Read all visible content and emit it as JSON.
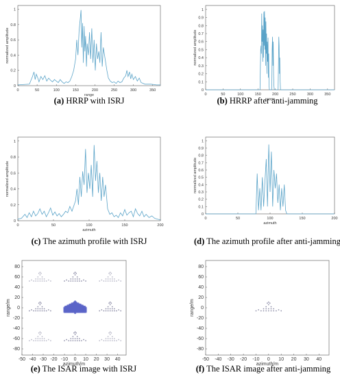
{
  "colors": {
    "line": "#5aa3c8",
    "axis": "#555555",
    "dense": "#5b64c8",
    "dot": "#8e8ea8"
  },
  "chart_data": [
    {
      "panel": "a",
      "type": "line",
      "caption_label": "(a)",
      "caption_text": "HRRP with ISRJ",
      "xlabel": "range",
      "ylabel": "normalized amplitude",
      "xlim": [
        0,
        370
      ],
      "ylim": [
        0,
        1.05
      ],
      "xticks": [
        0,
        50,
        100,
        150,
        200,
        250,
        300,
        350
      ],
      "yticks": [
        0,
        0.2,
        0.4,
        0.6,
        0.8,
        1
      ],
      "series": [
        {
          "x": [
            0,
            30,
            38,
            42,
            45,
            48,
            52,
            55,
            60,
            65,
            70,
            75,
            80,
            85,
            90,
            95,
            100,
            105,
            110,
            115,
            120,
            125,
            130,
            135,
            140,
            145,
            150,
            153,
            156,
            159,
            162,
            164,
            166,
            168,
            170,
            172,
            174,
            176,
            178,
            180,
            183,
            186,
            189,
            192,
            195,
            198,
            201,
            204,
            207,
            210,
            213,
            216,
            219,
            222,
            225,
            228,
            231,
            235,
            240,
            245,
            250,
            255,
            260,
            265,
            270,
            275,
            280,
            283,
            286,
            290,
            293,
            296,
            300,
            305,
            310,
            315,
            320,
            330,
            345,
            360,
            370
          ],
          "y": [
            0.01,
            0.02,
            0.12,
            0.18,
            0.08,
            0.15,
            0.1,
            0.05,
            0.12,
            0.08,
            0.13,
            0.06,
            0.1,
            0.07,
            0.05,
            0.08,
            0.06,
            0.04,
            0.08,
            0.05,
            0.03,
            0.05,
            0.04,
            0.06,
            0.12,
            0.2,
            0.35,
            0.6,
            0.4,
            0.72,
            0.88,
            0.99,
            0.5,
            0.82,
            0.3,
            0.78,
            0.45,
            0.65,
            0.25,
            0.55,
            0.4,
            0.7,
            0.35,
            0.75,
            0.3,
            0.6,
            0.2,
            0.55,
            0.35,
            0.45,
            0.3,
            0.7,
            0.25,
            0.5,
            0.4,
            0.3,
            0.2,
            0.1,
            0.06,
            0.04,
            0.05,
            0.03,
            0.06,
            0.04,
            0.05,
            0.1,
            0.13,
            0.2,
            0.12,
            0.18,
            0.09,
            0.15,
            0.08,
            0.12,
            0.06,
            0.1,
            0.04,
            0.02,
            0.02,
            0.01,
            0.01
          ]
        }
      ]
    },
    {
      "panel": "b",
      "type": "line",
      "caption_label": "(b)",
      "caption_text": "HRRP after anti-jamming",
      "xlabel": "range",
      "ylabel": "normalized amplitude",
      "xlim": [
        0,
        370
      ],
      "ylim": [
        0,
        1.05
      ],
      "xticks": [
        0,
        50,
        100,
        150,
        200,
        250,
        300,
        350
      ],
      "yticks": [
        0,
        0.1,
        0.2,
        0.3,
        0.4,
        0.5,
        0.6,
        0.7,
        0.8,
        0.9,
        1
      ],
      "series": [
        {
          "x": [
            0,
            150,
            156,
            157,
            158,
            159,
            160,
            161,
            162,
            163,
            164,
            165,
            166,
            167,
            168,
            169,
            170,
            171,
            172,
            173,
            174,
            175,
            176,
            177,
            178,
            179,
            180,
            181,
            182,
            183,
            184,
            185,
            190,
            191,
            192,
            193,
            194,
            195,
            196,
            197,
            200,
            205,
            208,
            209,
            210,
            211,
            212,
            213,
            214,
            215,
            216,
            217,
            220,
            370
          ],
          "y": [
            0,
            0,
            0,
            0.28,
            0.5,
            0.55,
            0.45,
            0.95,
            0.6,
            0.8,
            0.35,
            0.75,
            0.4,
            0.97,
            0.55,
            0.98,
            0.5,
            0.9,
            0.3,
            0.85,
            0.45,
            0.7,
            0.2,
            0.6,
            0.35,
            0.65,
            0.15,
            0.45,
            0.05,
            0,
            0,
            0,
            0,
            0.5,
            0.66,
            0.3,
            0.6,
            0.2,
            0.05,
            0,
            0,
            0,
            0,
            0.3,
            0.66,
            0.55,
            0.2,
            0.4,
            0.1,
            0,
            0,
            0,
            0,
            0
          ]
        }
      ]
    },
    {
      "panel": "c",
      "type": "line",
      "caption_label": "(c)",
      "caption_text": "The azimuth profile with ISRJ",
      "xlabel": "azimuth",
      "ylabel": "normalized amplitude",
      "xlim": [
        0,
        200
      ],
      "ylim": [
        0,
        1.05
      ],
      "xticks": [
        0,
        50,
        100,
        150,
        200
      ],
      "yticks": [
        0,
        0.2,
        0.4,
        0.6,
        0.8,
        1
      ],
      "series": [
        {
          "x": [
            0,
            5,
            10,
            13,
            16,
            19,
            22,
            25,
            28,
            31,
            34,
            37,
            40,
            43,
            46,
            49,
            52,
            55,
            58,
            61,
            64,
            67,
            70,
            73,
            76,
            79,
            81,
            83,
            85,
            87,
            89,
            91,
            93,
            95,
            97,
            99,
            101,
            103,
            105,
            107,
            109,
            111,
            113,
            115,
            117,
            119,
            121,
            123,
            126,
            129,
            132,
            135,
            138,
            141,
            144,
            147,
            150,
            153,
            156,
            159,
            162,
            165,
            168,
            171,
            174,
            177,
            180,
            184,
            188,
            192,
            196,
            200
          ],
          "y": [
            0.02,
            0.03,
            0.08,
            0.04,
            0.1,
            0.05,
            0.12,
            0.06,
            0.09,
            0.15,
            0.08,
            0.12,
            0.05,
            0.1,
            0.16,
            0.07,
            0.11,
            0.06,
            0.09,
            0.05,
            0.08,
            0.12,
            0.1,
            0.18,
            0.12,
            0.2,
            0.25,
            0.4,
            0.2,
            0.55,
            0.3,
            0.62,
            0.45,
            0.9,
            0.35,
            0.6,
            0.4,
            0.7,
            0.3,
            0.95,
            0.5,
            0.75,
            0.35,
            0.6,
            0.25,
            0.55,
            0.3,
            0.45,
            0.15,
            0.08,
            0.1,
            0.05,
            0.07,
            0.04,
            0.1,
            0.06,
            0.14,
            0.07,
            0.1,
            0.12,
            0.05,
            0.15,
            0.09,
            0.06,
            0.12,
            0.05,
            0.08,
            0.04,
            0.06,
            0.03,
            0.02,
            0.01
          ]
        }
      ]
    },
    {
      "panel": "d",
      "type": "line",
      "caption_label": "(d)",
      "caption_text": "The azimuth profile after anti-jamming",
      "xlabel": "azimuth",
      "ylabel": "normalized amplitude",
      "xlim": [
        0,
        200
      ],
      "ylim": [
        0,
        1.05
      ],
      "xticks": [
        0,
        50,
        100,
        150,
        200
      ],
      "yticks": [
        0,
        0.1,
        0.2,
        0.3,
        0.4,
        0.5,
        0.6,
        0.7,
        0.8,
        0.9,
        1
      ],
      "series": [
        {
          "x": [
            0,
            78,
            80,
            82,
            84,
            86,
            88,
            90,
            92,
            94,
            96,
            98,
            100,
            102,
            104,
            106,
            108,
            110,
            112,
            114,
            116,
            118,
            120,
            122,
            124,
            126,
            200
          ],
          "y": [
            0,
            0,
            0.55,
            0.05,
            0.35,
            0.05,
            0.5,
            0.1,
            0.45,
            0.75,
            0.1,
            0.95,
            0.3,
            0.85,
            0.1,
            0.6,
            0.35,
            0.55,
            0.15,
            0.4,
            0.05,
            0.35,
            0.1,
            0.4,
            0.05,
            0,
            0
          ]
        }
      ]
    },
    {
      "panel": "e",
      "type": "scatter",
      "caption_label": "(e)",
      "caption_text": "The ISAR image with ISRJ",
      "xlabel": "azimuth/m",
      "ylabel": "range/m",
      "xlim": [
        -50,
        48
      ],
      "ylim": [
        -92,
        92
      ],
      "xticks": [
        -50,
        -40,
        -30,
        -20,
        -10,
        0,
        10,
        20,
        30,
        40
      ],
      "yticks": [
        -80,
        -60,
        -40,
        -20,
        0,
        20,
        40,
        60,
        80
      ],
      "target_centers": [
        [
          0,
          0
        ],
        [
          -33,
          0
        ],
        [
          33,
          0
        ],
        [
          0,
          58
        ],
        [
          -33,
          58
        ],
        [
          33,
          58
        ],
        [
          0,
          -58
        ],
        [
          -33,
          -58
        ],
        [
          33,
          -58
        ]
      ],
      "dense_center": [
        0,
        0
      ]
    },
    {
      "panel": "f",
      "type": "scatter",
      "caption_label": "(f)",
      "caption_text": "The ISAR image after anti-jamming",
      "xlabel": "azimuth/m",
      "ylabel": "range/m",
      "xlim": [
        -50,
        48
      ],
      "ylim": [
        -92,
        92
      ],
      "xticks": [
        -50,
        -40,
        -30,
        -20,
        -10,
        0,
        10,
        20,
        30,
        40
      ],
      "yticks": [
        -80,
        -60,
        -40,
        -20,
        0,
        20,
        40,
        60,
        80
      ],
      "target_centers": [
        [
          0,
          0
        ]
      ]
    }
  ]
}
